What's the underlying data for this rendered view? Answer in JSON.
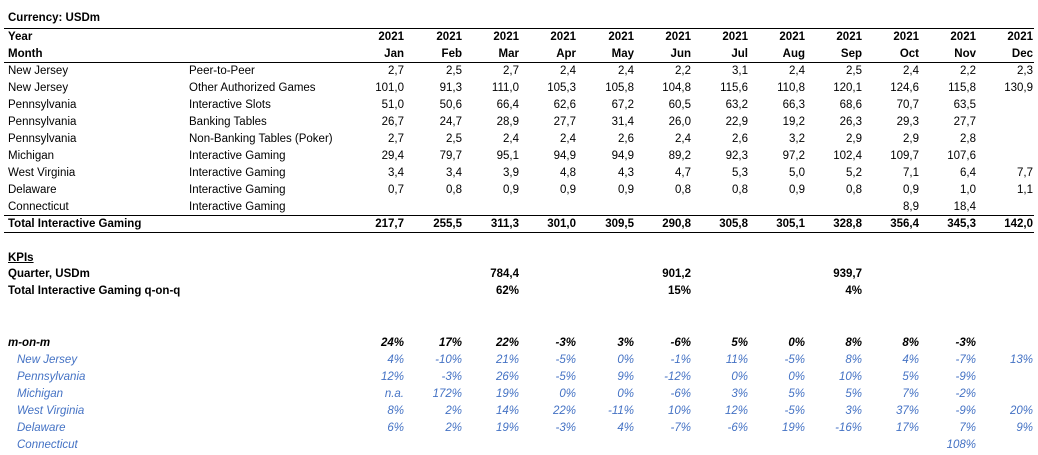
{
  "currency_label": "Currency: USDm",
  "header": {
    "year_label": "Year",
    "month_label": "Month",
    "years": [
      "2021",
      "2021",
      "2021",
      "2021",
      "2021",
      "2021",
      "2021",
      "2021",
      "2021",
      "2021",
      "2021",
      "2021"
    ],
    "months": [
      "Jan",
      "Feb",
      "Mar",
      "Apr",
      "May",
      "Jun",
      "Jul",
      "Aug",
      "Sep",
      "Oct",
      "Nov",
      "Dec"
    ]
  },
  "rows": [
    {
      "state": "New Jersey",
      "product": "Peer-to-Peer",
      "values": [
        "2,7",
        "2,5",
        "2,7",
        "2,4",
        "2,4",
        "2,2",
        "3,1",
        "2,4",
        "2,5",
        "2,4",
        "2,2",
        "2,3"
      ]
    },
    {
      "state": "New Jersey",
      "product": "Other Authorized Games",
      "values": [
        "101,0",
        "91,3",
        "111,0",
        "105,3",
        "105,8",
        "104,8",
        "115,6",
        "110,8",
        "120,1",
        "124,6",
        "115,8",
        "130,9"
      ]
    },
    {
      "state": "Pennsylvania",
      "product": "Interactive Slots",
      "values": [
        "51,0",
        "50,6",
        "66,4",
        "62,6",
        "67,2",
        "60,5",
        "63,2",
        "66,3",
        "68,6",
        "70,7",
        "63,5",
        ""
      ]
    },
    {
      "state": "Pennsylvania",
      "product": "Banking Tables",
      "values": [
        "26,7",
        "24,7",
        "28,9",
        "27,7",
        "31,4",
        "26,0",
        "22,9",
        "19,2",
        "26,3",
        "29,3",
        "27,7",
        ""
      ]
    },
    {
      "state": "Pennsylvania",
      "product": "Non-Banking Tables (Poker)",
      "values": [
        "2,7",
        "2,5",
        "2,4",
        "2,4",
        "2,6",
        "2,4",
        "2,6",
        "3,2",
        "2,9",
        "2,9",
        "2,8",
        ""
      ]
    },
    {
      "state": "Michigan",
      "product": "Interactive Gaming",
      "values": [
        "29,4",
        "79,7",
        "95,1",
        "94,9",
        "94,9",
        "89,2",
        "92,3",
        "97,2",
        "102,4",
        "109,7",
        "107,6",
        ""
      ]
    },
    {
      "state": "West Virginia",
      "product": "Interactive Gaming",
      "values": [
        "3,4",
        "3,4",
        "3,9",
        "4,8",
        "4,3",
        "4,7",
        "5,3",
        "5,0",
        "5,2",
        "7,1",
        "6,4",
        "7,7"
      ]
    },
    {
      "state": "Delaware",
      "product": "Interactive Gaming",
      "values": [
        "0,7",
        "0,8",
        "0,9",
        "0,9",
        "0,9",
        "0,8",
        "0,8",
        "0,9",
        "0,8",
        "0,9",
        "1,0",
        "1,1"
      ]
    },
    {
      "state": "Connecticut",
      "product": "Interactive Gaming",
      "values": [
        "",
        "",
        "",
        "",
        "",
        "",
        "",
        "",
        "",
        "8,9",
        "18,4",
        ""
      ]
    }
  ],
  "total": {
    "label": "Total Interactive Gaming",
    "values": [
      "217,7",
      "255,5",
      "311,3",
      "301,0",
      "309,5",
      "290,8",
      "305,8",
      "305,1",
      "328,8",
      "356,4",
      "345,3",
      "142,0"
    ]
  },
  "kpis": {
    "title": "KPIs",
    "quarter_label": "Quarter, USDm",
    "quarter_values": [
      "",
      "",
      "784,4",
      "",
      "",
      "901,2",
      "",
      "",
      "939,7",
      "",
      "",
      ""
    ],
    "qoq_label": "Total Interactive Gaming q-on-q",
    "qoq_values": [
      "",
      "",
      "62%",
      "",
      "",
      "15%",
      "",
      "",
      "4%",
      "",
      "",
      ""
    ]
  },
  "mom": {
    "label": "m-on-m",
    "values": [
      "24%",
      "17%",
      "22%",
      "-3%",
      "3%",
      "-6%",
      "5%",
      "0%",
      "8%",
      "8%",
      "-3%",
      ""
    ],
    "states": [
      {
        "name": "New Jersey",
        "values": [
          "4%",
          "-10%",
          "21%",
          "-5%",
          "0%",
          "-1%",
          "11%",
          "-5%",
          "8%",
          "4%",
          "-7%",
          "13%"
        ]
      },
      {
        "name": "Pennsylvania",
        "values": [
          "12%",
          "-3%",
          "26%",
          "-5%",
          "9%",
          "-12%",
          "0%",
          "0%",
          "10%",
          "5%",
          "-9%",
          ""
        ]
      },
      {
        "name": "Michigan",
        "values": [
          "n.a.",
          "172%",
          "19%",
          "0%",
          "0%",
          "-6%",
          "3%",
          "5%",
          "5%",
          "7%",
          "-2%",
          ""
        ]
      },
      {
        "name": "West Virginia",
        "values": [
          "8%",
          "2%",
          "14%",
          "22%",
          "-11%",
          "10%",
          "12%",
          "-5%",
          "3%",
          "37%",
          "-9%",
          "20%"
        ]
      },
      {
        "name": "Delaware",
        "values": [
          "6%",
          "2%",
          "19%",
          "-3%",
          "4%",
          "-7%",
          "-6%",
          "19%",
          "-16%",
          "17%",
          "7%",
          "9%"
        ]
      },
      {
        "name": "Connecticut",
        "values": [
          "",
          "",
          "",
          "",
          "",
          "",
          "",
          "",
          "",
          "",
          "108%",
          ""
        ]
      }
    ]
  },
  "colors": {
    "kpi_blue": "#4472c4",
    "text": "#000000"
  }
}
